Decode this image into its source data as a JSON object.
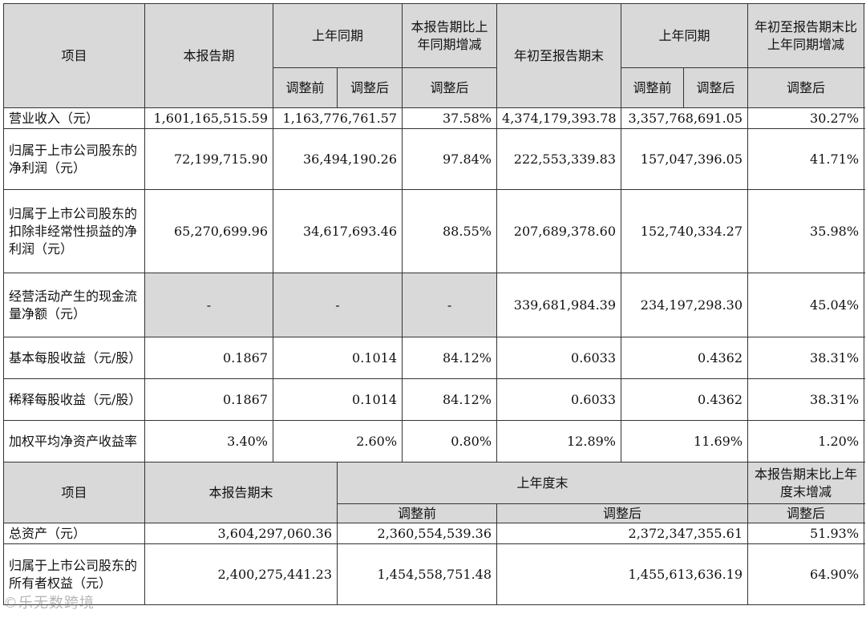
{
  "top_header": {
    "item": "项目",
    "current_period": "本报告期",
    "prior_same_period": "上年同期",
    "change_vs_prior": "本报告期比上年同期增减",
    "ytd": "年初至报告期末",
    "prior_same_period_2": "上年同期",
    "ytd_change": "年初至报告期末比上年同期增减",
    "before_adj": "调整前",
    "after_adj": "调整后",
    "after_adj_change": "调整后",
    "before_adj_2": "调整前",
    "after_adj_2": "调整后",
    "after_adj_change_2": "调整后"
  },
  "rows": [
    {
      "label": "营业收入（元）",
      "cur": "1,601,165,515.59",
      "prior": "1,163,776,761.57",
      "chg": "37.58%",
      "ytd": "4,374,179,393.78",
      "ytd_prior": "3,357,768,691.05",
      "ytd_chg": "30.27%"
    },
    {
      "label": "归属于上市公司股东的净利润（元）",
      "cur": "72,199,715.90",
      "prior": "36,494,190.26",
      "chg": "97.84%",
      "ytd": "222,553,339.83",
      "ytd_prior": "157,047,396.05",
      "ytd_chg": "41.71%"
    },
    {
      "label": "归属于上市公司股东的扣除非经常性损益的净利润（元）",
      "cur": "65,270,699.96",
      "prior": "34,617,693.46",
      "chg": "88.55%",
      "ytd": "207,689,378.60",
      "ytd_prior": "152,740,334.27",
      "ytd_chg": "35.98%"
    },
    {
      "label": "经营活动产生的现金流量净额（元）",
      "cur": "-",
      "prior": "-",
      "chg": "-",
      "ytd": "339,681,984.39",
      "ytd_prior": "234,197,298.30",
      "ytd_chg": "45.04%"
    },
    {
      "label": "基本每股收益（元/股）",
      "cur": "0.1867",
      "prior": "0.1014",
      "chg": "84.12%",
      "ytd": "0.6033",
      "ytd_prior": "0.4362",
      "ytd_chg": "38.31%"
    },
    {
      "label": "稀释每股收益（元/股）",
      "cur": "0.1867",
      "prior": "0.1014",
      "chg": "84.12%",
      "ytd": "0.6033",
      "ytd_prior": "0.4362",
      "ytd_chg": "38.31%"
    },
    {
      "label": "加权平均净资产收益率",
      "cur": "3.40%",
      "prior": "2.60%",
      "chg": "0.80%",
      "ytd": "12.89%",
      "ytd_prior": "11.69%",
      "ytd_chg": "1.20%"
    }
  ],
  "bottom_header": {
    "item": "项目",
    "period_end": "本报告期末",
    "prior_year_end": "上年度末",
    "change": "本报告期末比上年度末增减",
    "before_adj": "调整前",
    "after_adj": "调整后",
    "after_adj_change": "调整后"
  },
  "bottom_rows": [
    {
      "label": "总资产（元）",
      "cur": "3,604,297,060.36",
      "before": "2,360,554,539.36",
      "after": "2,372,347,355.61",
      "chg": "51.93%"
    },
    {
      "label": "归属于上市公司股东的所有者权益（元）",
      "cur": "2,400,275,441.23",
      "before": "1,454,558,751.48",
      "after": "1,455,613,636.19",
      "chg": "64.90%"
    }
  ],
  "watermark": "©乐无数跨境"
}
